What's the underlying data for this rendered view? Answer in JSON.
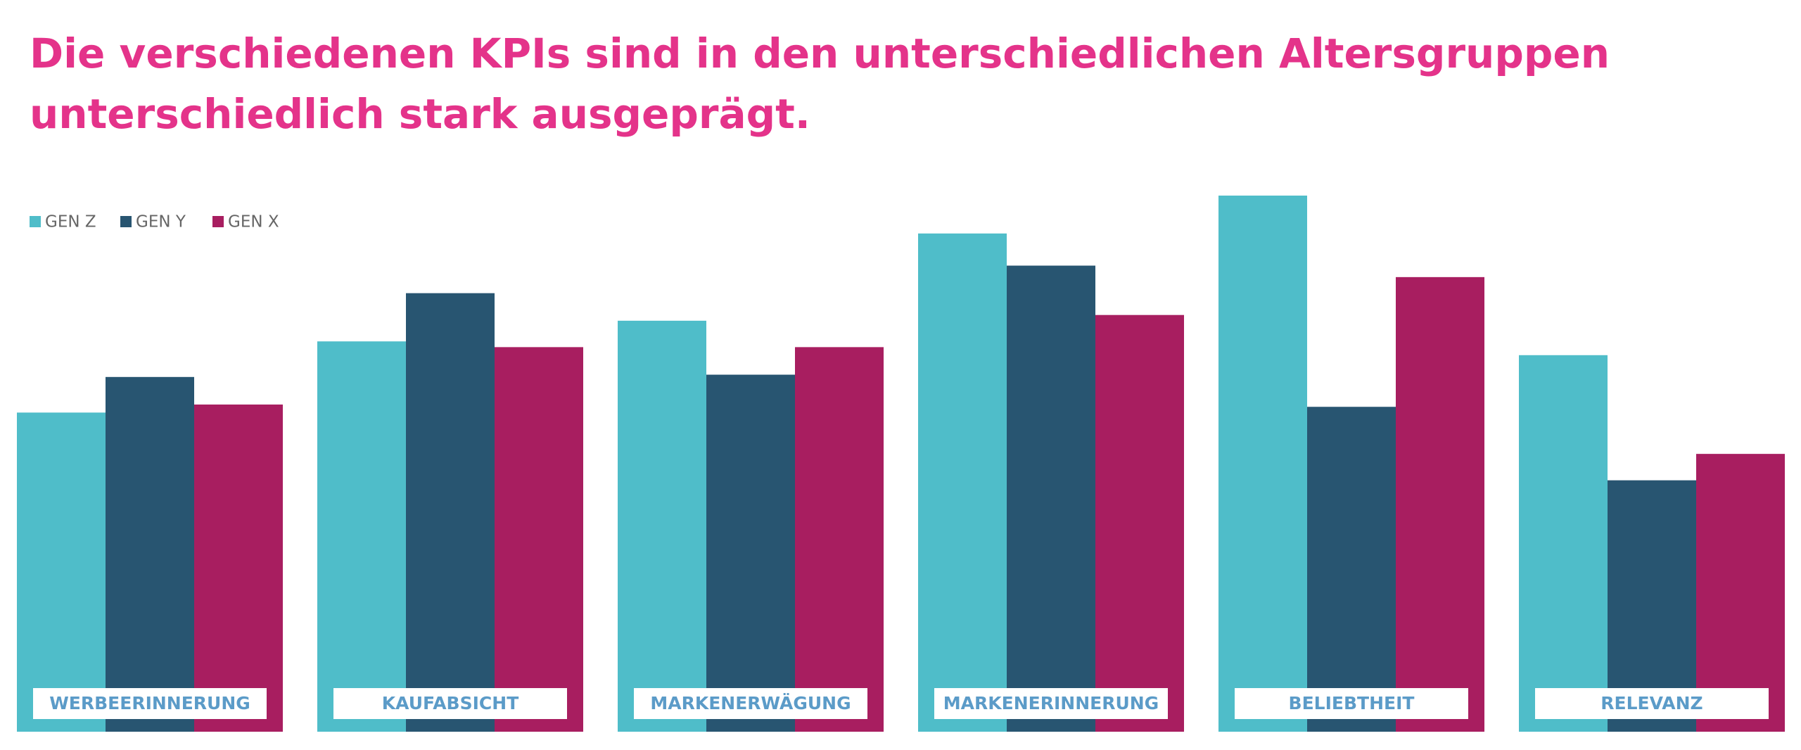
{
  "chart_data": {
    "type": "bar",
    "title_lines": [
      "Die verschiedenen KPIs sind in den unterschiedlichen Altersgruppen",
      "unterschiedlich stark ausgeprägt."
    ],
    "categories": [
      "WERBEERINNERUNG",
      "KAUFABSICHT",
      "MARKENERWÄGUNG",
      "MARKENERINNERUNG",
      "BELIEBTHEIT",
      "RELEVANZ"
    ],
    "series": [
      {
        "name": "GEN Z",
        "color": "#4fbdc9",
        "values": [
          278,
          340,
          358,
          434,
          467,
          328
        ]
      },
      {
        "name": "GEN Y",
        "color": "#285571",
        "values": [
          309,
          382,
          311,
          406,
          283,
          219
        ]
      },
      {
        "name": "GEN X",
        "color": "#a81e60",
        "values": [
          285,
          335,
          335,
          363,
          396,
          242
        ]
      }
    ]
  }
}
